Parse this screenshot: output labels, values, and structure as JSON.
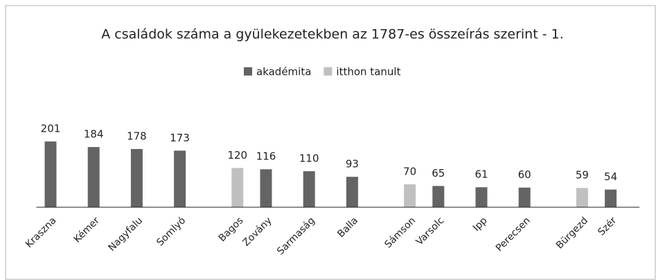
{
  "chart_data": {
    "type": "bar",
    "title": "A családok száma a gyülekezetekben az 1787-es összeírás szerint - 1.",
    "categories": [
      "Kraszna",
      "Kémer",
      "Nagyfalu",
      "Somlyó",
      "Bagos",
      "Zovány",
      "Sarmaság",
      "Balla",
      "Sámson",
      "Varsolc",
      "Ipp",
      "Perecsen",
      "Bürgezd",
      "Szér"
    ],
    "series": [
      {
        "name": "akadémita",
        "color": "#646464",
        "values": [
          201,
          184,
          178,
          173,
          null,
          116,
          110,
          93,
          null,
          65,
          61,
          60,
          null,
          54
        ]
      },
      {
        "name": "itthon tanult",
        "color": "#c0c0c0",
        "values": [
          null,
          null,
          null,
          null,
          120,
          null,
          null,
          null,
          70,
          null,
          null,
          null,
          59,
          null
        ]
      }
    ],
    "ylim": [
      0,
      250
    ],
    "legend": "top"
  }
}
